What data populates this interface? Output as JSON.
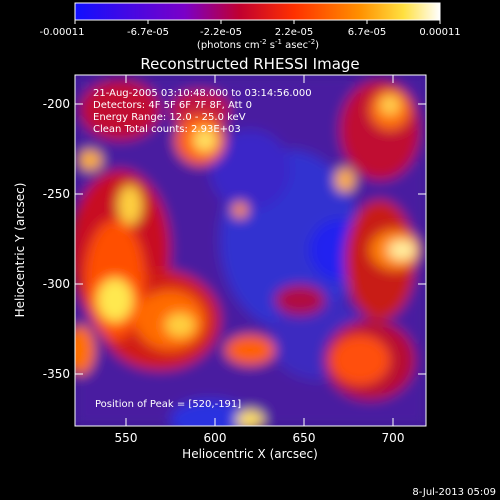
{
  "colorbar": {
    "ticks": [
      "-0.00011",
      "-6.7e-05",
      "-2.2e-05",
      "2.2e-05",
      "6.7e-05",
      "0.00011"
    ],
    "units_prefix": "(photons cm",
    "units_exp1": "-2",
    "units_mid": " s",
    "units_exp2": "-1",
    "units_suffix": " asec",
    "units_exp3": "-2",
    "units_close": ")",
    "colormap": [
      "#1010ff",
      "#7a00c8",
      "#c00030",
      "#ff3000",
      "#ff9000",
      "#ffe040",
      "#ffffff"
    ]
  },
  "plot": {
    "title": "Reconstructed RHESSI Image",
    "xlabel": "Heliocentric X (arcsec)",
    "ylabel": "Heliocentric Y (arcsec)",
    "x_ticks": [
      "550",
      "600",
      "650",
      "700"
    ],
    "y_ticks": [
      "-200",
      "-250",
      "-300",
      "-350"
    ],
    "info_lines": [
      "21-Aug-2005 03:10:48.000 to 03:14:56.000",
      "Detectors: 4F 5F 6F 7F 8F, Att 0",
      "Energy Range: 12.0 - 25.0 keV",
      "Clean    Total counts: 2.93E+03"
    ],
    "peak_label": "Position of Peak = [520,-191]"
  },
  "footer": {
    "date": "8-Jul-2013 05:09"
  }
}
